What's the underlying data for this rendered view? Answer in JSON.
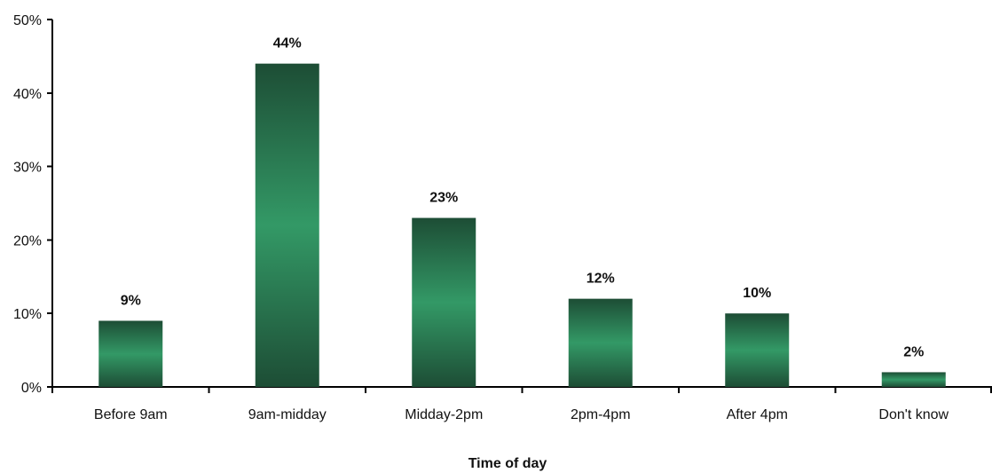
{
  "chart_data": {
    "type": "bar",
    "title": "",
    "xlabel": "Time of day",
    "ylabel": "",
    "categories": [
      "Before 9am",
      "9am-midday",
      "Midday-2pm",
      "2pm-4pm",
      "After 4pm",
      "Don't know"
    ],
    "values": [
      9,
      44,
      23,
      12,
      10,
      2
    ],
    "data_labels": [
      "9%",
      "44%",
      "23%",
      "12%",
      "10%",
      "2%"
    ],
    "ylim": [
      0,
      50
    ],
    "yticks": [
      0,
      10,
      20,
      30,
      40,
      50
    ],
    "ytick_labels": [
      "0%",
      "10%",
      "20%",
      "30%",
      "40%",
      "50%"
    ],
    "grid": false,
    "legend": "none",
    "colors": {
      "bar_dark": "#1d4d35",
      "bar_light": "#339966",
      "axis": "#000000",
      "text": "#111111"
    }
  }
}
